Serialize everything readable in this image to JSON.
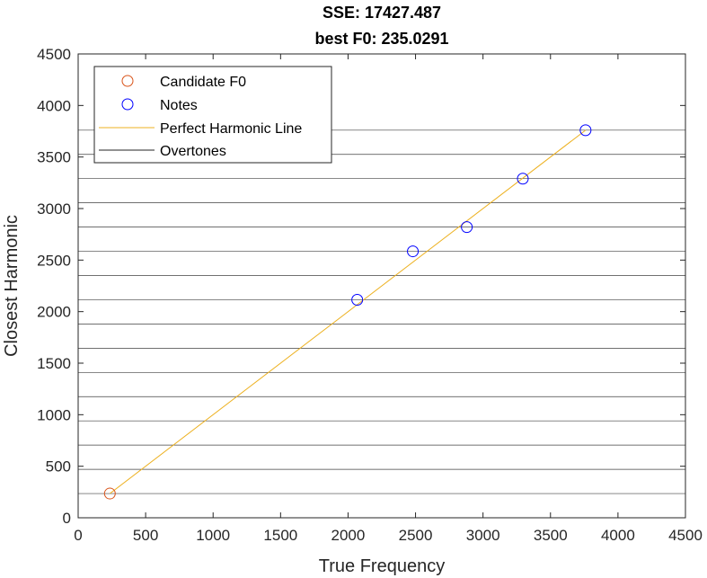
{
  "chart_data": {
    "type": "scatter",
    "title": [
      "SSE: 17427.487",
      "best F0: 235.0291"
    ],
    "xlabel": "True Frequency",
    "ylabel": "Closest Harmonic",
    "xlim": [
      0,
      4500
    ],
    "ylim": [
      0,
      4500
    ],
    "xticks": [
      0,
      500,
      1000,
      1500,
      2000,
      2500,
      3000,
      3500,
      4000,
      4500
    ],
    "yticks": [
      0,
      500,
      1000,
      1500,
      2000,
      2500,
      3000,
      3500,
      4000,
      4500
    ],
    "grid": false,
    "box": true,
    "legend_position": "top-left",
    "colors": {
      "candidate": "#EDB120",
      "candidate_marker": "#D95319",
      "notes": "#0000FF",
      "overtones": "#000000",
      "axes": "#262626"
    },
    "candidate_f0": {
      "name": "Candidate F0",
      "x": 235.0291,
      "y": 235.0291
    },
    "notes": {
      "name": "Notes",
      "points": [
        {
          "x": 2068,
          "y": 2115
        },
        {
          "x": 2480,
          "y": 2585
        },
        {
          "x": 2880,
          "y": 2820
        },
        {
          "x": 3295,
          "y": 3290
        },
        {
          "x": 3760,
          "y": 3760
        }
      ]
    },
    "perfect_harmonic_line": {
      "name": "Perfect Harmonic Line",
      "x": [
        235.0291,
        3760
      ],
      "y": [
        235.0291,
        3760
      ]
    },
    "overtones": {
      "name": "Overtones",
      "fundamental": 235.0291,
      "harmonics": [
        1,
        2,
        3,
        4,
        5,
        6,
        7,
        8,
        9,
        10,
        11,
        12,
        13,
        14,
        15,
        16
      ]
    }
  }
}
